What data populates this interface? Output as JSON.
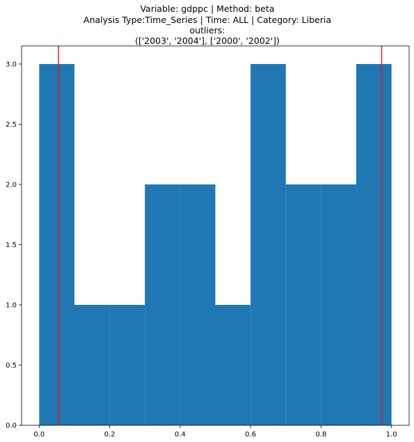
{
  "chart_data": {
    "type": "bar",
    "title_lines": [
      "Variable: gdppc | Method: beta",
      "Analysis Type:Time_Series | Time: ALL | Category: Liberia",
      "outliers:",
      "(['2003', '2004'], ['2000', '2002'])"
    ],
    "xlabel": "",
    "ylabel": "",
    "bin_edges": [
      0.0,
      0.1,
      0.2,
      0.3,
      0.4,
      0.5,
      0.6,
      0.7,
      0.8,
      0.9,
      1.0
    ],
    "counts": [
      3,
      1,
      1,
      2,
      2,
      1,
      3,
      2,
      2,
      3
    ],
    "xlim": [
      -0.05,
      1.05
    ],
    "ylim": [
      0,
      3.15
    ],
    "xticks": [
      0.0,
      0.2,
      0.4,
      0.6,
      0.8,
      1.0
    ],
    "xtick_labels": [
      "0.0",
      "0.2",
      "0.4",
      "0.6",
      "0.8",
      "1.0"
    ],
    "yticks": [
      0.0,
      0.5,
      1.0,
      1.5,
      2.0,
      2.5,
      3.0
    ],
    "ytick_labels": [
      "0.0",
      "0.5",
      "1.0",
      "1.5",
      "2.0",
      "2.5",
      "3.0"
    ],
    "vlines": [
      0.055,
      0.972
    ],
    "bar_color": "#1f77b4",
    "vline_color": "#e8191d",
    "grid": false,
    "legend": "none"
  }
}
